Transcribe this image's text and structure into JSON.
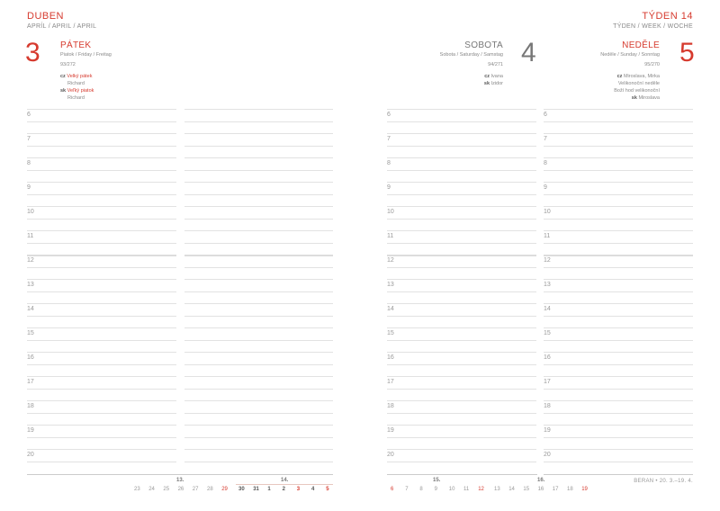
{
  "header": {
    "month": "DUBEN",
    "month_sub": "APRÍL / APRIL / APRIL",
    "week": "TÝDEN 14",
    "week_sub": "TÝDEN / WEEK / WOCHE"
  },
  "days": [
    {
      "num": "3",
      "name": "PÁTEK",
      "names": "Piatok / Friday / Freitag",
      "ordinal": "93/272",
      "notes": [
        {
          "lang": "cz",
          "text": "Velký pátek",
          "red": true
        },
        {
          "lang": "",
          "text": "Richard"
        },
        {
          "lang": "sk",
          "text": "Veľký piatok",
          "red": true
        },
        {
          "lang": "",
          "text": "Richard"
        }
      ]
    },
    {
      "num": "4",
      "name": "SOBOTA",
      "names": "Sobota / Saturday / Samstag",
      "ordinal": "94/271",
      "notes": [
        {
          "lang": "cz",
          "text": "Ivana"
        },
        {
          "lang": "sk",
          "text": "Izidor"
        }
      ]
    },
    {
      "num": "5",
      "name": "NEDĚLE",
      "names": "Neděle / Sunday / Sonntag",
      "ordinal": "95/270",
      "notes": [
        {
          "lang": "cz",
          "text": "Miroslava, Mirka"
        },
        {
          "lang": "",
          "text": "Velikonoční neděle"
        },
        {
          "lang": "",
          "text": "Boží hod velikonoční"
        },
        {
          "lang": "sk",
          "text": "Miroslava"
        }
      ]
    }
  ],
  "hours": [
    "6",
    "7",
    "8",
    "9",
    "10",
    "11",
    "12",
    "13",
    "14",
    "15",
    "16",
    "17",
    "18",
    "19",
    "20"
  ],
  "mini_calendar": [
    {
      "week": "13.",
      "days": [
        "23",
        "24",
        "25",
        "26",
        "27",
        "28",
        "29"
      ],
      "red": [
        "29"
      ]
    },
    {
      "week": "14.",
      "days": [
        "30",
        "31",
        "1",
        "2",
        "3",
        "4",
        "5"
      ],
      "red": [
        "3",
        "5"
      ],
      "bold": true
    },
    {
      "week": "15.",
      "days": [
        "6",
        "7",
        "8",
        "9",
        "10",
        "11",
        "12"
      ],
      "red": [
        "6",
        "12"
      ]
    },
    {
      "week": "16.",
      "days": [
        "13",
        "14",
        "15",
        "16",
        "17",
        "18",
        "19"
      ],
      "red": [
        "19"
      ]
    }
  ],
  "footer": "BERAN • 20. 3.–19. 4.",
  "colors": {
    "accent": "#d63a2e",
    "text": "#777777",
    "line": "#e2e2e2"
  }
}
